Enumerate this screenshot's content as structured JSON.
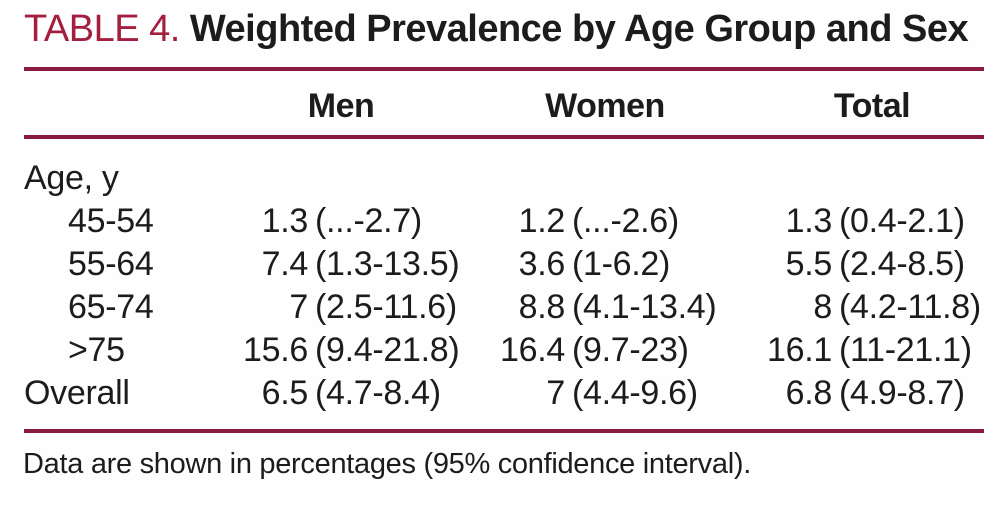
{
  "accent": {
    "title_color": "#A41E3E",
    "rule_color": "#8B1A42"
  },
  "title": {
    "label": "TABLE 4.",
    "text": " Weighted Prevalence by Age Group and Sex"
  },
  "header": {
    "men": "Men",
    "women": "Women",
    "total": "Total"
  },
  "group_label": "Age, y",
  "rows": [
    {
      "label": "45-54",
      "men": {
        "v": "1.3",
        "ci": "(...-2.7)"
      },
      "women": {
        "v": "1.2",
        "ci": "(...-2.6)"
      },
      "total": {
        "v": "1.3",
        "ci": "(0.4-2.1)"
      }
    },
    {
      "label": "55-64",
      "men": {
        "v": "7.4",
        "ci": "(1.3-13.5)"
      },
      "women": {
        "v": "3.6",
        "ci": "(1-6.2)"
      },
      "total": {
        "v": "5.5",
        "ci": "(2.4-8.5)"
      }
    },
    {
      "label": "65-74",
      "men": {
        "v": "7",
        "ci": "(2.5-11.6)"
      },
      "women": {
        "v": "8.8",
        "ci": "(4.1-13.4)"
      },
      "total": {
        "v": "8",
        "ci": "(4.2-11.8)"
      }
    },
    {
      "label": ">75",
      "men": {
        "v": "15.6",
        "ci": "(9.4-21.8)"
      },
      "women": {
        "v": "16.4",
        "ci": "(9.7-23)"
      },
      "total": {
        "v": "16.1",
        "ci": "(11-21.1)"
      }
    },
    {
      "label": "Overall",
      "men": {
        "v": "6.5",
        "ci": "(4.7-8.4)"
      },
      "women": {
        "v": "7",
        "ci": "(4.4-9.6)"
      },
      "total": {
        "v": "6.8",
        "ci": "(4.9-8.7)"
      }
    }
  ],
  "footnote": "Data are shown in percentages (95% confidence interval)."
}
